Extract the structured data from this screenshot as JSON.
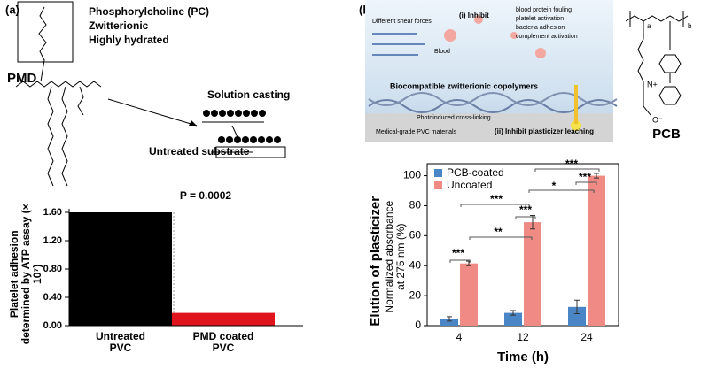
{
  "panel_a": {
    "label": "(a)",
    "structure_notes": [
      "Phosphorylcholine (PC)",
      "Zwitterionic",
      "Highly hydrated"
    ],
    "polymer": "PMD",
    "process": [
      "Solution casting",
      "Untreated substrate"
    ]
  },
  "panel_b": {
    "label": "(b)",
    "schematic": {
      "flow": "Different shear forces",
      "inhibit_1": "(i) Inhibit",
      "blood": "Blood",
      "effects": [
        "blood protein fouling",
        "platelet activation",
        "bacteria adhesion",
        "complement activation"
      ],
      "coating": "Biocompatible zwitterionic copolymers",
      "crosslink": "Photoinduced cross-linking",
      "substrate": "Medical-grade PVC materials",
      "inhibit_2": "(ii) Inhibit plasticizer leaching"
    },
    "structure": {
      "name": "PCB",
      "labels": [
        "a",
        "b",
        "N+",
        "O⁻"
      ]
    }
  },
  "chart_data": [
    {
      "type": "bar",
      "categories": [
        "Untreated PVC",
        "PMD coated PVC"
      ],
      "values": [
        1.6,
        0.18
      ],
      "colors": [
        "#000000",
        "#e0141c"
      ],
      "y_label": "Platelet adhesion determined by ATP assay (× 10⁷)",
      "ylim": [
        0,
        1.6
      ],
      "yticks": [
        {
          "value": 0,
          "label": "0.00"
        },
        {
          "value": 0.4,
          "label": "0.40"
        },
        {
          "value": 0.8,
          "label": "0.80"
        },
        {
          "value": 1.2,
          "label": "1.20"
        },
        {
          "value": 1.6,
          "label": "1.60"
        }
      ],
      "annotation": "P = 0.0002"
    },
    {
      "type": "grouped_bar",
      "categories": [
        "4",
        "12",
        "24"
      ],
      "series": [
        {
          "name": "PCB-coated",
          "color": "#4a86c5",
          "values": [
            4.5,
            8.5,
            12.5
          ],
          "errors": [
            1.5,
            1.5,
            4.5
          ]
        },
        {
          "name": "Uncoated",
          "color": "#f08a84",
          "values": [
            41.5,
            69,
            100
          ],
          "errors": [
            1.5,
            4.5,
            1.5
          ]
        }
      ],
      "y_title": "Elution of plasticizer",
      "y_label": "Normalized absorbance at 275 nm (%)",
      "x_label": "Time (h)",
      "ylim": [
        0,
        108
      ],
      "yticks": [
        0,
        20,
        40,
        60,
        80,
        100
      ],
      "legend": "top-left",
      "significance": [
        "***",
        "**",
        "***",
        "***",
        "*",
        "***",
        "***"
      ]
    }
  ]
}
